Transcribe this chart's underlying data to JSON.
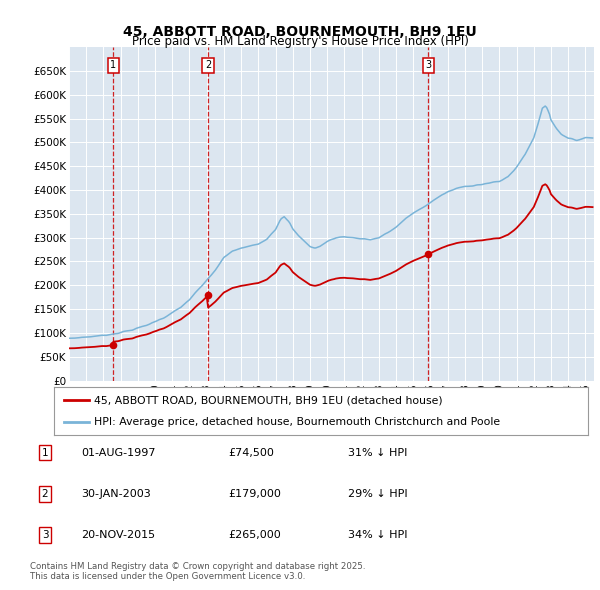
{
  "title": "45, ABBOTT ROAD, BOURNEMOUTH, BH9 1EU",
  "subtitle": "Price paid vs. HM Land Registry's House Price Index (HPI)",
  "legend_line1": "45, ABBOTT ROAD, BOURNEMOUTH, BH9 1EU (detached house)",
  "legend_line2": "HPI: Average price, detached house, Bournemouth Christchurch and Poole",
  "footer_line1": "Contains HM Land Registry data © Crown copyright and database right 2025.",
  "footer_line2": "This data is licensed under the Open Government Licence v3.0.",
  "background_color": "#ffffff",
  "plot_bg_color": "#dce6f0",
  "grid_color": "#ffffff",
  "hpi_color": "#7ab4d8",
  "price_color": "#cc0000",
  "vline_color": "#cc0000",
  "sale_events": [
    {
      "t": 1997.583,
      "price": 74500,
      "label": "1"
    },
    {
      "t": 2003.083,
      "price": 179000,
      "label": "2"
    },
    {
      "t": 2015.875,
      "price": 265000,
      "label": "3"
    }
  ],
  "table_rows": [
    {
      "num": "1",
      "date": "01-AUG-1997",
      "price": "£74,500",
      "pct": "31% ↓ HPI"
    },
    {
      "num": "2",
      "date": "30-JAN-2003",
      "price": "£179,000",
      "pct": "29% ↓ HPI"
    },
    {
      "num": "3",
      "date": "20-NOV-2015",
      "price": "£265,000",
      "pct": "34% ↓ HPI"
    }
  ],
  "yticks": [
    0,
    50000,
    100000,
    150000,
    200000,
    250000,
    300000,
    350000,
    400000,
    450000,
    500000,
    550000,
    600000,
    650000
  ],
  "ylim_max": 700000,
  "xlim_start": 1995.0,
  "xlim_end": 2025.5,
  "hpi_anchors": [
    [
      1995.0,
      88000
    ],
    [
      1995.5,
      90000
    ],
    [
      1996.0,
      91500
    ],
    [
      1996.5,
      93000
    ],
    [
      1997.0,
      95000
    ],
    [
      1997.5,
      97500
    ],
    [
      1998.0,
      101000
    ],
    [
      1998.5,
      105000
    ],
    [
      1999.0,
      110000
    ],
    [
      1999.5,
      116000
    ],
    [
      2000.0,
      124000
    ],
    [
      2000.5,
      132000
    ],
    [
      2001.0,
      142000
    ],
    [
      2001.5,
      154000
    ],
    [
      2002.0,
      170000
    ],
    [
      2002.5,
      190000
    ],
    [
      2003.0,
      210000
    ],
    [
      2003.5,
      232000
    ],
    [
      2004.0,
      258000
    ],
    [
      2004.5,
      272000
    ],
    [
      2005.0,
      278000
    ],
    [
      2005.5,
      282000
    ],
    [
      2006.0,
      287000
    ],
    [
      2006.5,
      298000
    ],
    [
      2007.0,
      318000
    ],
    [
      2007.3,
      340000
    ],
    [
      2007.5,
      345000
    ],
    [
      2007.8,
      332000
    ],
    [
      2008.0,
      318000
    ],
    [
      2008.3,
      305000
    ],
    [
      2008.8,
      288000
    ],
    [
      2009.0,
      282000
    ],
    [
      2009.3,
      278000
    ],
    [
      2009.6,
      282000
    ],
    [
      2010.0,
      292000
    ],
    [
      2010.5,
      300000
    ],
    [
      2011.0,
      302000
    ],
    [
      2011.5,
      300000
    ],
    [
      2012.0,
      298000
    ],
    [
      2012.5,
      296000
    ],
    [
      2013.0,
      300000
    ],
    [
      2013.5,
      310000
    ],
    [
      2014.0,
      322000
    ],
    [
      2014.5,
      338000
    ],
    [
      2015.0,
      352000
    ],
    [
      2015.5,
      362000
    ],
    [
      2016.0,
      374000
    ],
    [
      2016.5,
      386000
    ],
    [
      2017.0,
      396000
    ],
    [
      2017.5,
      403000
    ],
    [
      2018.0,
      408000
    ],
    [
      2018.5,
      410000
    ],
    [
      2019.0,
      412000
    ],
    [
      2019.5,
      415000
    ],
    [
      2020.0,
      418000
    ],
    [
      2020.5,
      428000
    ],
    [
      2021.0,
      448000
    ],
    [
      2021.5,
      475000
    ],
    [
      2022.0,
      510000
    ],
    [
      2022.3,
      545000
    ],
    [
      2022.5,
      572000
    ],
    [
      2022.7,
      578000
    ],
    [
      2022.9,
      562000
    ],
    [
      2023.0,
      548000
    ],
    [
      2023.3,
      530000
    ],
    [
      2023.6,
      518000
    ],
    [
      2024.0,
      508000
    ],
    [
      2024.5,
      505000
    ],
    [
      2025.0,
      510000
    ]
  ],
  "price_scale_seg1": 0.77,
  "price_scale_seg2": 0.665,
  "price_scale_seg3": 0.665
}
